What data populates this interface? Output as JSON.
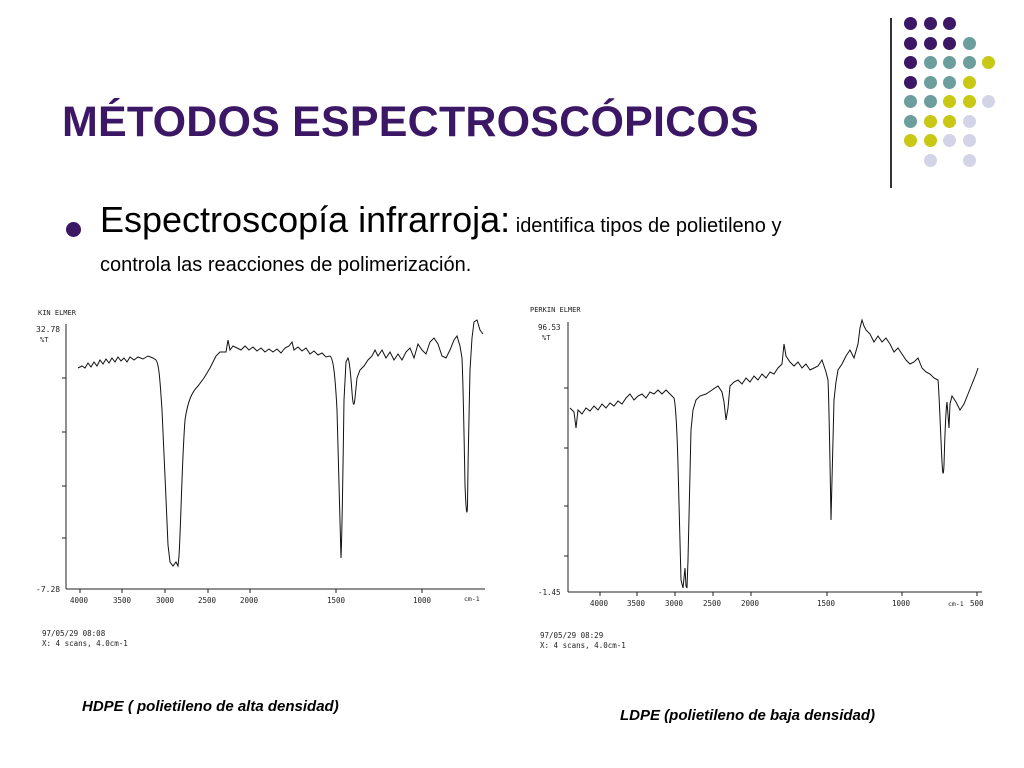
{
  "slide": {
    "title": "MÉTODOS ESPECTROSCÓPICOS",
    "bullet": {
      "heading": "Espectroscopía infrarroja:",
      "text_line1": " identifica tipos de polietileno y",
      "text_line2": "controla las reacciones de polimerización."
    },
    "captions": {
      "left": "HDPE ( polietileno de alta densidad)",
      "right": "LDPE (polietileno de baja densidad)"
    },
    "colors": {
      "title": "#3b1766",
      "dot_purple": "#3b1766",
      "dot_teal": "#6b9e9c",
      "dot_yellow": "#c8c815",
      "dot_lavender": "#d4d4e8"
    }
  },
  "spectra": {
    "left": {
      "header": "KIN ELMER",
      "y_top_label": "32.78",
      "y_unit": "%T",
      "y_bottom_label": "-7.28",
      "x_ticks": [
        "4000",
        "3500",
        "3000",
        "2500",
        "2000",
        "1500",
        "1000",
        "cm-1"
      ],
      "footer_line1": "97/05/29 08:08",
      "footer_line2": "X:  4 scans, 4.0cm-1"
    },
    "right": {
      "header": "PERKIN ELMER",
      "y_top_label": "96.53",
      "y_unit": "%T",
      "y_bottom_label": "-1.45",
      "x_ticks": [
        "4000",
        "3500",
        "3000",
        "2500",
        "2000",
        "1500",
        "1000",
        "cm-1",
        "500"
      ],
      "footer_line1": "97/05/29 08:29",
      "footer_line2": "X:  4 scans, 4.0cm-1"
    }
  }
}
